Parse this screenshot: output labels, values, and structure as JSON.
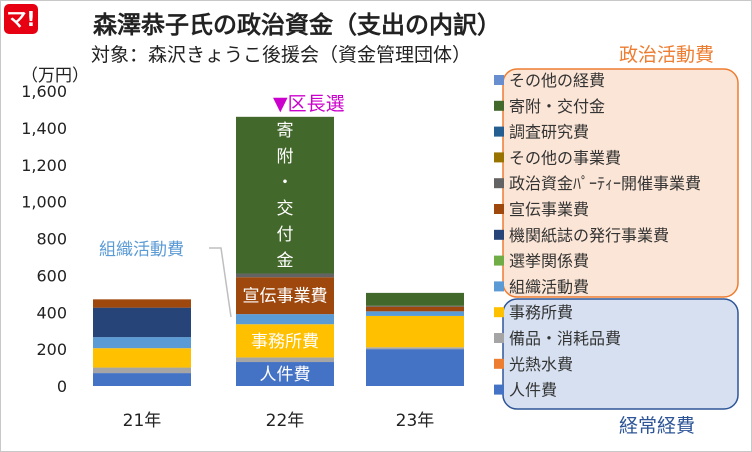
{
  "header": {
    "logo": "マ!",
    "title": "森澤恭子氏の政治資金（支出の内訳）",
    "subtitle": "対象：森沢きょうこ後援会（資金管理団体）"
  },
  "groups": {
    "political": {
      "label": "政治活動費",
      "color": "#ed7d31"
    },
    "ordinary": {
      "label": "経常経費",
      "color": "#2e5597"
    }
  },
  "annotations": {
    "event": "▼区長選",
    "event_color": "#cc00cc",
    "callout": "組織活動費"
  },
  "chart_data": {
    "type": "bar",
    "stacked": true,
    "unit": "（万円）",
    "categories": [
      "21年",
      "22年",
      "23年"
    ],
    "ylim": [
      0,
      1600
    ],
    "yticks": [
      "0",
      "200",
      "400",
      "600",
      "800",
      "1,000",
      "1,200",
      "1,400",
      "1,600"
    ],
    "ytick_values": [
      0,
      200,
      400,
      600,
      800,
      1000,
      1200,
      1400,
      1600
    ],
    "grid": false,
    "legend_position": "right",
    "series": [
      {
        "name": "人件費",
        "color": "#4472c4",
        "values": [
          70,
          130,
          200
        ],
        "labels": [
          "",
          "人件費",
          ""
        ]
      },
      {
        "name": "光熱水費",
        "color": "#ed7d31",
        "values": [
          0,
          0,
          0
        ],
        "labels": [
          "",
          "",
          ""
        ]
      },
      {
        "name": "備品・消耗品費",
        "color": "#a5a5a5",
        "values": [
          30,
          25,
          10
        ],
        "labels": [
          "",
          "",
          ""
        ]
      },
      {
        "name": "事務所費",
        "color": "#ffc000",
        "values": [
          105,
          180,
          170
        ],
        "labels": [
          "",
          "事務所費",
          ""
        ]
      },
      {
        "name": "組織活動費",
        "color": "#5b9bd5",
        "values": [
          60,
          55,
          25
        ],
        "labels": [
          "",
          "",
          ""
        ]
      },
      {
        "name": "選挙関係費",
        "color": "#70ad47",
        "values": [
          0,
          0,
          0
        ],
        "labels": [
          "",
          "",
          ""
        ]
      },
      {
        "name": "機関紙誌の発行事業費",
        "color": "#264478",
        "values": [
          160,
          0,
          0
        ],
        "labels": [
          "",
          "",
          ""
        ]
      },
      {
        "name": "宣伝事業費",
        "color": "#9e480e",
        "values": [
          45,
          200,
          25
        ],
        "labels": [
          "",
          "宣伝事業費",
          ""
        ]
      },
      {
        "name": "政治資金ﾊﾟｰﾃｨｰ開催事業費",
        "color": "#636363",
        "values": [
          0,
          20,
          5
        ],
        "labels": [
          "",
          "",
          ""
        ]
      },
      {
        "name": "その他の事業費",
        "color": "#997300",
        "values": [
          0,
          0,
          0
        ],
        "labels": [
          "",
          "",
          ""
        ]
      },
      {
        "name": "調査研究費",
        "color": "#255e91",
        "values": [
          0,
          0,
          0
        ],
        "labels": [
          "",
          "",
          ""
        ]
      },
      {
        "name": "寄附・交付金",
        "color": "#43682b",
        "values": [
          0,
          850,
          70
        ],
        "labels": [
          "",
          "寄附・交付金",
          ""
        ]
      },
      {
        "name": "その他の経費",
        "color": "#698ed0",
        "values": [
          0,
          0,
          0
        ],
        "labels": [
          "",
          "",
          ""
        ]
      }
    ]
  }
}
